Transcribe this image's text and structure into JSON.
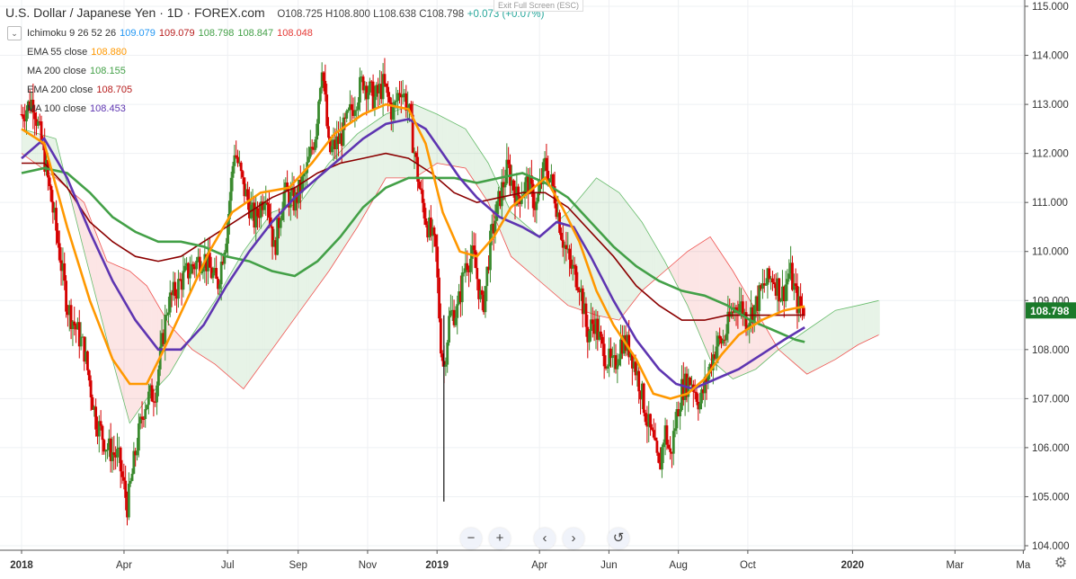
{
  "header": {
    "symbol": "U.S. Dollar / Japanese Yen · 1D · FOREX.com",
    "ohlc": "O108.725 H108.800 L108.638 C108.798",
    "change": "+0.073 (+0.07%)",
    "exit_fullscreen": "Exit Full Screen (ESC)"
  },
  "legend": [
    {
      "name": "Ichimoku 9 26 52 26",
      "values": [
        {
          "text": "109.079",
          "color": "#2196f3"
        },
        {
          "text": "109.079",
          "color": "#b71c1c"
        },
        {
          "text": "108.798",
          "color": "#43a047"
        },
        {
          "text": "108.847",
          "color": "#43a047"
        },
        {
          "text": "108.048",
          "color": "#e53935"
        }
      ]
    },
    {
      "name": "EMA 55 close",
      "values": [
        {
          "text": "108.880",
          "color": "#ff9800"
        }
      ]
    },
    {
      "name": "MA 200 close",
      "values": [
        {
          "text": "108.155",
          "color": "#43a047"
        }
      ]
    },
    {
      "name": "EMA 200 close",
      "values": [
        {
          "text": "108.705",
          "color": "#b71c1c"
        }
      ]
    },
    {
      "name": "MA 100 close",
      "values": [
        {
          "text": "108.453",
          "color": "#5e35b1"
        }
      ]
    }
  ],
  "price_label": "108.798",
  "nav_buttons": [
    "−",
    "+",
    "‹",
    "›",
    "↺"
  ],
  "colors": {
    "up": "#3a8a2e",
    "down": "#d50000",
    "ema55": "#ff9800",
    "ma200": "#43a047",
    "ema200": "#8b0000",
    "ma100": "#5e35b1",
    "last": "#1b7a2a"
  },
  "chart_data": {
    "type": "candlestick",
    "ylim": [
      104.0,
      115.0
    ],
    "y_ticks": [
      "104.000",
      "105.000",
      "106.000",
      "107.000",
      "108.000",
      "109.000",
      "110.000",
      "111.000",
      "112.000",
      "113.000",
      "114.000",
      "115.000"
    ],
    "x_ticks": [
      "2018",
      "Apr",
      "Jul",
      "Sep",
      "Nov",
      "2019",
      "Apr",
      "Jun",
      "Aug",
      "Oct",
      "2020",
      "Mar",
      "Ma"
    ],
    "x_tick_days": [
      0,
      90,
      181,
      243,
      304,
      365,
      455,
      516,
      577,
      638,
      730,
      820,
      880
    ],
    "x_range_days": [
      0,
      905
    ],
    "close_path": [
      [
        0,
        112.8
      ],
      [
        10,
        113.1
      ],
      [
        20,
        111.9
      ],
      [
        30,
        110.5
      ],
      [
        40,
        108.9
      ],
      [
        55,
        108.0
      ],
      [
        65,
        106.6
      ],
      [
        75,
        106.0
      ],
      [
        85,
        105.8
      ],
      [
        93,
        104.8
      ],
      [
        100,
        105.9
      ],
      [
        108,
        106.9
      ],
      [
        118,
        107.2
      ],
      [
        128,
        108.9
      ],
      [
        140,
        109.4
      ],
      [
        150,
        109.7
      ],
      [
        160,
        109.9
      ],
      [
        172,
        109.3
      ],
      [
        180,
        110.4
      ],
      [
        187,
        112.1
      ],
      [
        195,
        111.3
      ],
      [
        205,
        110.6
      ],
      [
        215,
        111.3
      ],
      [
        222,
        110.0
      ],
      [
        230,
        111.2
      ],
      [
        240,
        111.0
      ],
      [
        250,
        111.6
      ],
      [
        258,
        112.4
      ],
      [
        264,
        113.9
      ],
      [
        270,
        112.0
      ],
      [
        280,
        112.3
      ],
      [
        290,
        112.9
      ],
      [
        300,
        113.5
      ],
      [
        310,
        113.1
      ],
      [
        318,
        113.4
      ],
      [
        326,
        112.8
      ],
      [
        333,
        113.4
      ],
      [
        340,
        112.9
      ],
      [
        350,
        111.2
      ],
      [
        356,
        110.6
      ],
      [
        364,
        110.0
      ],
      [
        368,
        108.2
      ],
      [
        371,
        107.6
      ],
      [
        376,
        108.7
      ],
      [
        383,
        108.8
      ],
      [
        390,
        109.8
      ],
      [
        397,
        109.9
      ],
      [
        405,
        108.8
      ],
      [
        412,
        110.2
      ],
      [
        420,
        111.1
      ],
      [
        427,
        111.7
      ],
      [
        435,
        111.1
      ],
      [
        445,
        111.4
      ],
      [
        452,
        110.9
      ],
      [
        460,
        111.8
      ],
      [
        468,
        111.2
      ],
      [
        475,
        110.3
      ],
      [
        482,
        109.7
      ],
      [
        490,
        109.4
      ],
      [
        497,
        108.3
      ],
      [
        503,
        108.6
      ],
      [
        510,
        108.0
      ],
      [
        520,
        107.6
      ],
      [
        527,
        108.2
      ],
      [
        535,
        108.0
      ],
      [
        543,
        107.3
      ],
      [
        550,
        106.5
      ],
      [
        555,
        106.1
      ],
      [
        560,
        105.5
      ],
      [
        565,
        106.4
      ],
      [
        570,
        105.8
      ],
      [
        575,
        106.6
      ],
      [
        580,
        107.2
      ],
      [
        588,
        107.4
      ],
      [
        596,
        106.9
      ],
      [
        603,
        107.5
      ],
      [
        610,
        108.1
      ],
      [
        617,
        108.2
      ],
      [
        623,
        108.7
      ],
      [
        630,
        109.0
      ],
      [
        637,
        108.6
      ],
      [
        645,
        108.9
      ],
      [
        652,
        109.3
      ],
      [
        660,
        109.5
      ],
      [
        668,
        109.1
      ],
      [
        675,
        109.6
      ],
      [
        682,
        108.9
      ],
      [
        688,
        108.8
      ]
    ],
    "ema55": [
      [
        0,
        112.5
      ],
      [
        20,
        112.2
      ],
      [
        40,
        110.5
      ],
      [
        60,
        109.0
      ],
      [
        80,
        107.8
      ],
      [
        95,
        107.3
      ],
      [
        110,
        107.3
      ],
      [
        125,
        108.0
      ],
      [
        145,
        109.0
      ],
      [
        165,
        110.0
      ],
      [
        185,
        110.8
      ],
      [
        210,
        111.2
      ],
      [
        235,
        111.3
      ],
      [
        255,
        111.8
      ],
      [
        275,
        112.4
      ],
      [
        300,
        112.8
      ],
      [
        320,
        113.0
      ],
      [
        340,
        112.9
      ],
      [
        355,
        112.2
      ],
      [
        370,
        110.8
      ],
      [
        385,
        110.0
      ],
      [
        400,
        109.9
      ],
      [
        415,
        110.3
      ],
      [
        430,
        110.9
      ],
      [
        445,
        111.2
      ],
      [
        460,
        111.5
      ],
      [
        475,
        110.9
      ],
      [
        490,
        110.2
      ],
      [
        505,
        109.2
      ],
      [
        520,
        108.5
      ],
      [
        540,
        107.8
      ],
      [
        555,
        107.1
      ],
      [
        570,
        107.0
      ],
      [
        585,
        107.1
      ],
      [
        600,
        107.4
      ],
      [
        615,
        107.9
      ],
      [
        630,
        108.3
      ],
      [
        650,
        108.6
      ],
      [
        670,
        108.8
      ],
      [
        688,
        108.88
      ]
    ],
    "ma200": [
      [
        0,
        111.6
      ],
      [
        20,
        111.7
      ],
      [
        40,
        111.6
      ],
      [
        60,
        111.2
      ],
      [
        80,
        110.7
      ],
      [
        100,
        110.4
      ],
      [
        120,
        110.2
      ],
      [
        140,
        110.2
      ],
      [
        160,
        110.1
      ],
      [
        180,
        109.9
      ],
      [
        200,
        109.8
      ],
      [
        220,
        109.6
      ],
      [
        240,
        109.5
      ],
      [
        260,
        109.8
      ],
      [
        280,
        110.3
      ],
      [
        300,
        110.9
      ],
      [
        320,
        111.3
      ],
      [
        340,
        111.5
      ],
      [
        360,
        111.5
      ],
      [
        380,
        111.5
      ],
      [
        400,
        111.4
      ],
      [
        420,
        111.5
      ],
      [
        440,
        111.6
      ],
      [
        460,
        111.4
      ],
      [
        480,
        111.1
      ],
      [
        500,
        110.6
      ],
      [
        520,
        110.1
      ],
      [
        540,
        109.7
      ],
      [
        560,
        109.4
      ],
      [
        580,
        109.2
      ],
      [
        600,
        109.1
      ],
      [
        620,
        108.9
      ],
      [
        640,
        108.6
      ],
      [
        660,
        108.4
      ],
      [
        680,
        108.2
      ],
      [
        688,
        108.155
      ]
    ],
    "ema200": [
      [
        0,
        111.8
      ],
      [
        20,
        111.8
      ],
      [
        40,
        111.3
      ],
      [
        60,
        110.6
      ],
      [
        80,
        110.2
      ],
      [
        100,
        109.9
      ],
      [
        120,
        109.8
      ],
      [
        140,
        109.9
      ],
      [
        160,
        110.2
      ],
      [
        180,
        110.5
      ],
      [
        200,
        110.8
      ],
      [
        220,
        111.1
      ],
      [
        240,
        111.3
      ],
      [
        260,
        111.6
      ],
      [
        280,
        111.8
      ],
      [
        300,
        111.9
      ],
      [
        320,
        112.0
      ],
      [
        340,
        111.9
      ],
      [
        360,
        111.6
      ],
      [
        380,
        111.2
      ],
      [
        400,
        111.0
      ],
      [
        420,
        111.1
      ],
      [
        440,
        111.2
      ],
      [
        460,
        111.2
      ],
      [
        480,
        110.9
      ],
      [
        500,
        110.4
      ],
      [
        520,
        109.9
      ],
      [
        540,
        109.3
      ],
      [
        560,
        108.9
      ],
      [
        580,
        108.6
      ],
      [
        600,
        108.6
      ],
      [
        620,
        108.7
      ],
      [
        640,
        108.7
      ],
      [
        660,
        108.7
      ],
      [
        688,
        108.705
      ]
    ],
    "ma100": [
      [
        0,
        111.9
      ],
      [
        20,
        112.3
      ],
      [
        40,
        111.5
      ],
      [
        60,
        110.4
      ],
      [
        80,
        109.4
      ],
      [
        100,
        108.6
      ],
      [
        120,
        108.0
      ],
      [
        140,
        108.0
      ],
      [
        160,
        108.5
      ],
      [
        180,
        109.3
      ],
      [
        200,
        110.0
      ],
      [
        220,
        110.6
      ],
      [
        240,
        111.1
      ],
      [
        260,
        111.5
      ],
      [
        280,
        111.9
      ],
      [
        300,
        112.3
      ],
      [
        320,
        112.6
      ],
      [
        340,
        112.7
      ],
      [
        355,
        112.5
      ],
      [
        370,
        112.0
      ],
      [
        385,
        111.5
      ],
      [
        400,
        111.1
      ],
      [
        420,
        110.7
      ],
      [
        440,
        110.5
      ],
      [
        455,
        110.3
      ],
      [
        470,
        110.6
      ],
      [
        485,
        110.5
      ],
      [
        500,
        109.9
      ],
      [
        520,
        109.0
      ],
      [
        540,
        108.2
      ],
      [
        560,
        107.6
      ],
      [
        575,
        107.3
      ],
      [
        590,
        107.2
      ],
      [
        610,
        107.4
      ],
      [
        630,
        107.6
      ],
      [
        650,
        107.9
      ],
      [
        670,
        108.2
      ],
      [
        688,
        108.453
      ]
    ],
    "cloud_a": [
      [
        0,
        112.5
      ],
      [
        30,
        112.3
      ],
      [
        55,
        110.0
      ],
      [
        75,
        108.2
      ],
      [
        95,
        106.5
      ],
      [
        110,
        107.0
      ],
      [
        130,
        107.5
      ],
      [
        150,
        108.3
      ],
      [
        170,
        109.0
      ],
      [
        195,
        110.0
      ],
      [
        220,
        110.8
      ],
      [
        245,
        111.0
      ],
      [
        270,
        111.8
      ],
      [
        295,
        112.4
      ],
      [
        320,
        112.8
      ],
      [
        345,
        113.0
      ],
      [
        365,
        112.8
      ],
      [
        390,
        112.5
      ],
      [
        410,
        111.8
      ],
      [
        430,
        110.8
      ],
      [
        455,
        110.3
      ],
      [
        480,
        110.8
      ],
      [
        505,
        111.5
      ],
      [
        525,
        111.2
      ],
      [
        545,
        110.6
      ],
      [
        565,
        109.8
      ],
      [
        585,
        108.9
      ],
      [
        605,
        107.8
      ],
      [
        625,
        107.4
      ],
      [
        645,
        107.6
      ],
      [
        665,
        108.0
      ],
      [
        690,
        108.4
      ],
      [
        715,
        108.8
      ],
      [
        735,
        108.9
      ],
      [
        753,
        109.0
      ]
    ],
    "cloud_b": [
      [
        0,
        112.0
      ],
      [
        30,
        111.5
      ],
      [
        55,
        111.0
      ],
      [
        75,
        109.8
      ],
      [
        95,
        109.6
      ],
      [
        110,
        109.3
      ],
      [
        130,
        108.5
      ],
      [
        150,
        108.0
      ],
      [
        170,
        107.7
      ],
      [
        195,
        107.2
      ],
      [
        220,
        108.0
      ],
      [
        245,
        108.8
      ],
      [
        270,
        109.6
      ],
      [
        295,
        110.5
      ],
      [
        320,
        111.5
      ],
      [
        345,
        111.5
      ],
      [
        365,
        111.8
      ],
      [
        390,
        111.7
      ],
      [
        410,
        111.0
      ],
      [
        430,
        109.9
      ],
      [
        455,
        109.4
      ],
      [
        480,
        108.9
      ],
      [
        505,
        108.7
      ],
      [
        525,
        108.6
      ],
      [
        545,
        109.2
      ],
      [
        565,
        109.6
      ],
      [
        585,
        110.0
      ],
      [
        605,
        110.3
      ],
      [
        625,
        109.6
      ],
      [
        645,
        108.8
      ],
      [
        665,
        108.0
      ],
      [
        690,
        107.5
      ],
      [
        715,
        107.8
      ],
      [
        735,
        108.1
      ],
      [
        753,
        108.3
      ]
    ]
  }
}
